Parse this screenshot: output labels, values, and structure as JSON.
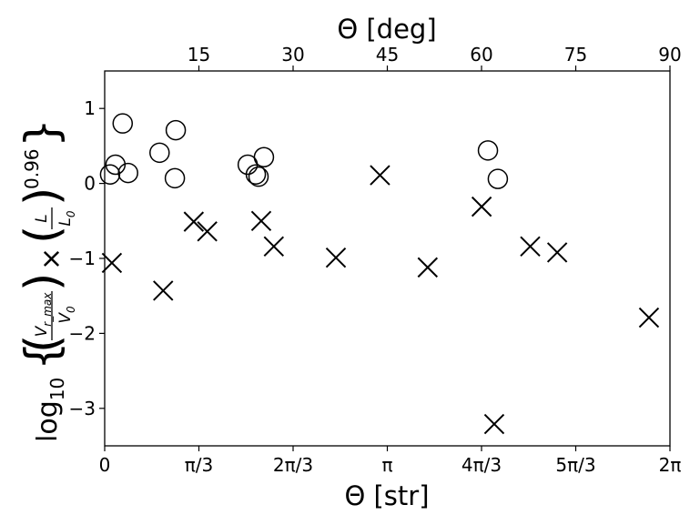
{
  "chart_data": {
    "type": "scatter",
    "xlabel": "Θ [str]",
    "x2label": "Θ [deg]",
    "ylabel": "log10{(V_r_max/V0) × (L/L0)^0.96}",
    "xlim": [
      0,
      6.2832
    ],
    "ylim": [
      -3.5,
      1.5
    ],
    "grid": false,
    "x_ticks": [
      {
        "value": 0,
        "label": "0"
      },
      {
        "value": 1.0472,
        "label": "π/3"
      },
      {
        "value": 2.0944,
        "label": "2π/3"
      },
      {
        "value": 3.1416,
        "label": "π"
      },
      {
        "value": 4.1888,
        "label": "4π/3"
      },
      {
        "value": 5.236,
        "label": "5π/3"
      },
      {
        "value": 6.2832,
        "label": "2π"
      }
    ],
    "x2_ticks": [
      {
        "value": 15,
        "label": "15"
      },
      {
        "value": 30,
        "label": "30"
      },
      {
        "value": 45,
        "label": "45"
      },
      {
        "value": 60,
        "label": "60"
      },
      {
        "value": 75,
        "label": "75"
      },
      {
        "value": 90,
        "label": "90"
      }
    ],
    "y_ticks": [
      {
        "value": 1,
        "label": "1"
      },
      {
        "value": 0,
        "label": "0"
      },
      {
        "value": -1,
        "label": "−1"
      },
      {
        "value": -2,
        "label": "−2"
      },
      {
        "value": -3,
        "label": "−3"
      }
    ],
    "series": [
      {
        "marker": "circle",
        "points": [
          [
            0.06,
            0.12
          ],
          [
            0.12,
            0.25
          ],
          [
            0.2,
            0.8
          ],
          [
            0.26,
            0.14
          ],
          [
            0.61,
            0.41
          ],
          [
            0.78,
            0.07
          ],
          [
            0.79,
            0.71
          ],
          [
            1.59,
            0.25
          ],
          [
            1.68,
            0.12
          ],
          [
            1.71,
            0.09
          ],
          [
            1.77,
            0.35
          ],
          [
            4.26,
            0.44
          ],
          [
            4.37,
            0.06
          ]
        ]
      },
      {
        "marker": "x",
        "points": [
          [
            0.08,
            -1.06
          ],
          [
            0.65,
            -1.43
          ],
          [
            0.99,
            -0.51
          ],
          [
            1.14,
            -0.64
          ],
          [
            1.74,
            -0.5
          ],
          [
            1.88,
            -0.84
          ],
          [
            2.57,
            -0.99
          ],
          [
            3.06,
            0.11
          ],
          [
            3.59,
            -1.12
          ],
          [
            4.19,
            -0.31
          ],
          [
            4.33,
            -3.21
          ],
          [
            4.73,
            -0.84
          ],
          [
            5.03,
            -0.92
          ],
          [
            6.05,
            -1.79
          ]
        ]
      }
    ]
  }
}
